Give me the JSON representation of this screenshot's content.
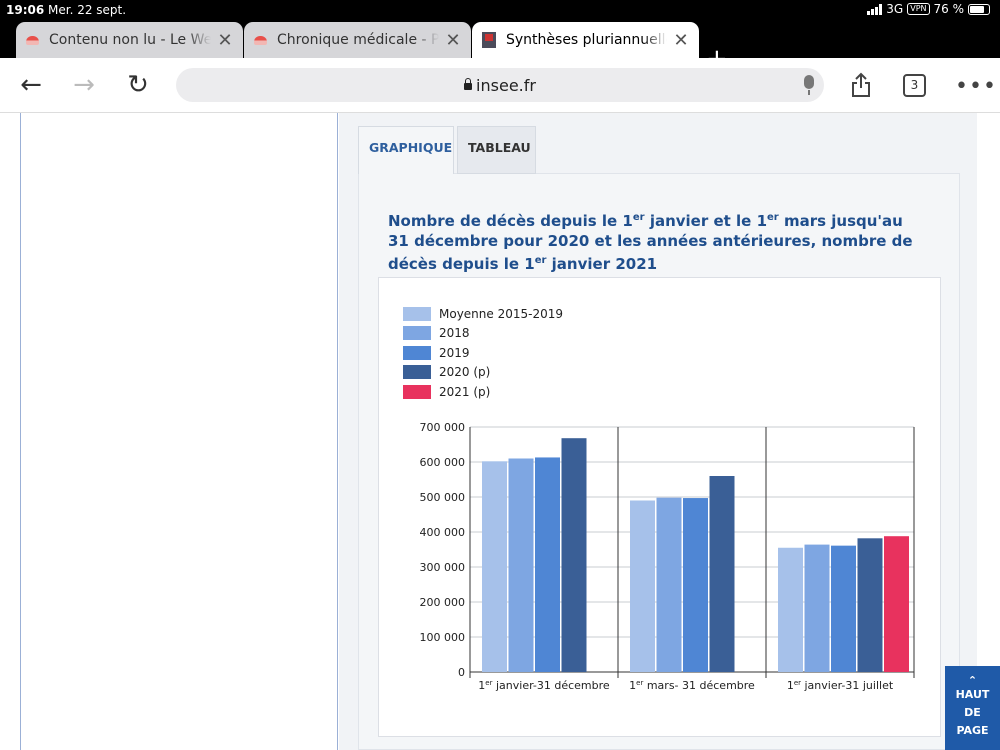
{
  "status_bar": {
    "time": "19:06",
    "date": "Mer. 22 sept.",
    "network": "3G",
    "vpn": "VPN",
    "battery": "76 %",
    "battery_level": 0.76
  },
  "tabs": [
    {
      "label": "Contenu non lu - Le Web",
      "icon": "pocket-red-icon",
      "active": false
    },
    {
      "label": "Chronique médicale - Pa",
      "icon": "pocket-red-icon",
      "active": false
    },
    {
      "label": "Synthèses pluriannuelles",
      "icon": "insee-logo-icon",
      "active": true
    }
  ],
  "address_bar": {
    "url": "insee.fr",
    "tab_count": "3"
  },
  "content_tabs": {
    "graph": "GRAPHIQUE",
    "table": "TABLEAU"
  },
  "chart_title": {
    "p1": "Nombre de décès depuis le 1",
    "sup1": "er",
    "p2": " janvier et le 1",
    "sup2": "er",
    "p3": " mars jusqu'au 31 décembre pour 2020 et les années antérieures, nombre de décès depuis le 1",
    "sup3": "er",
    "p4": " janvier 2021"
  },
  "chart_data": {
    "type": "bar",
    "categories": [
      {
        "sup": "er",
        "pre": "1",
        "post": " janvier-31 décembre"
      },
      {
        "sup": "er",
        "pre": "1",
        "post": " mars- 31 décembre"
      },
      {
        "sup": "er",
        "pre": "1",
        "post": " janvier-31 juillet"
      }
    ],
    "series": [
      {
        "name": "Moyenne 2015-2019",
        "color": "#a6c1ea",
        "values": [
          602000,
          490000,
          355000
        ]
      },
      {
        "name": "2018",
        "color": "#7ea6e2",
        "values": [
          610000,
          498000,
          364000
        ]
      },
      {
        "name": "2019",
        "color": "#4f86d4",
        "values": [
          613000,
          497000,
          361000
        ]
      },
      {
        "name": "2020 (p)",
        "color": "#3a5f96",
        "values": [
          668000,
          560000,
          382000
        ]
      },
      {
        "name": "2021 (p)",
        "color": "#e8325e",
        "values": [
          null,
          null,
          388000
        ]
      }
    ],
    "yticks": [
      "0",
      "100 000",
      "200 000",
      "300 000",
      "400 000",
      "500 000",
      "600 000",
      "700 000"
    ],
    "ylim": [
      0,
      700000
    ],
    "grid": true,
    "legend_position": "top-left"
  },
  "haut_de_page": {
    "line1": "HAUT",
    "line2": "DE",
    "line3": "PAGE"
  }
}
